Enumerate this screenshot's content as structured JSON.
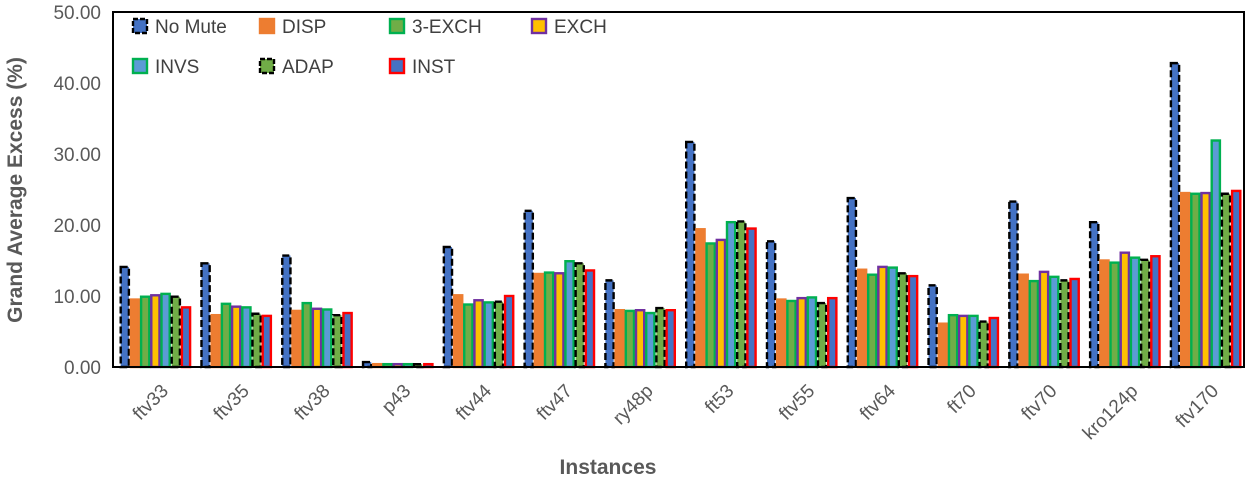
{
  "chart_data": {
    "type": "bar",
    "title": "",
    "xlabel": "Instances",
    "ylabel": "Grand Average Excess (%)",
    "ylim": [
      0,
      50
    ],
    "yticks": [
      "0.00",
      "10.00",
      "20.00",
      "30.00",
      "40.00",
      "50.00"
    ],
    "legend_placement": "top-left, inside plot",
    "grid": false,
    "categories": [
      "ftv33",
      "ftv35",
      "ftv38",
      "p43",
      "ftv44",
      "ftv47",
      "ry48p",
      "ft53",
      "ftv55",
      "ftv64",
      "ft70",
      "ftv70",
      "kro124p",
      "ftv170"
    ],
    "series": [
      {
        "name": "No Mute",
        "fill": "#4472c4",
        "outline": "#000000",
        "dashed": true,
        "values": [
          14.1,
          14.6,
          15.7,
          0.7,
          16.9,
          22.0,
          12.2,
          31.7,
          17.7,
          23.8,
          11.5,
          23.3,
          20.4,
          42.8
        ]
      },
      {
        "name": "DISP",
        "fill": "#ed7d31",
        "outline": "#ed7d31",
        "dashed": false,
        "values": [
          9.5,
          7.3,
          7.9,
          0.4,
          10.1,
          13.1,
          8.0,
          19.4,
          9.5,
          13.7,
          6.1,
          13.0,
          15.0,
          24.5
        ]
      },
      {
        "name": "3-EXCH",
        "fill": "#70ad47",
        "outline": "#00b050",
        "dashed": false,
        "values": [
          9.9,
          8.9,
          9.0,
          0.4,
          8.8,
          13.3,
          7.9,
          17.4,
          9.3,
          13.0,
          7.3,
          12.1,
          14.7,
          24.4
        ]
      },
      {
        "name": "EXCH",
        "fill": "#ffc000",
        "outline": "#7030a0",
        "dashed": false,
        "values": [
          10.1,
          8.5,
          8.2,
          0.4,
          9.4,
          13.2,
          8.0,
          17.9,
          9.7,
          14.1,
          7.2,
          13.4,
          16.1,
          24.5
        ]
      },
      {
        "name": "INVS",
        "fill": "#5b9bd5",
        "outline": "#00b050",
        "dashed": false,
        "values": [
          10.3,
          8.4,
          8.1,
          0.4,
          9.1,
          14.9,
          7.6,
          20.4,
          9.8,
          14.0,
          7.2,
          12.7,
          15.4,
          31.9
        ]
      },
      {
        "name": "ADAP",
        "fill": "#70ad47",
        "outline": "#000000",
        "dashed": true,
        "values": [
          9.9,
          7.5,
          7.3,
          0.4,
          9.2,
          14.6,
          8.3,
          20.5,
          9.0,
          13.2,
          6.4,
          12.2,
          15.1,
          24.4
        ]
      },
      {
        "name": "INST",
        "fill": "#4472c4",
        "outline": "#ff0000",
        "dashed": false,
        "values": [
          8.4,
          7.2,
          7.6,
          0.4,
          10.0,
          13.6,
          8.0,
          19.5,
          9.7,
          12.8,
          6.9,
          12.4,
          15.6,
          24.8
        ]
      }
    ]
  }
}
